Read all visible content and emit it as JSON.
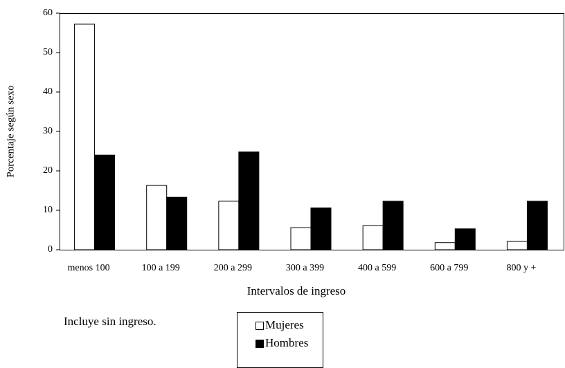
{
  "chart_data": {
    "type": "bar",
    "y_label": "Porcentaje según sexo",
    "x_label": "Intervalos de ingreso",
    "note": "Incluye sin ingreso.",
    "categories": [
      "menos 100",
      "100 a 199",
      "200 a 299",
      "300 a 399",
      "400 a 599",
      "600 a 799",
      "800 y +"
    ],
    "series": [
      {
        "name": "Mujeres",
        "color": "#ffffff",
        "values": [
          57.2,
          16.3,
          12.3,
          5.6,
          6.1,
          1.8,
          2.1
        ]
      },
      {
        "name": "Hombres",
        "color": "#000000",
        "values": [
          24.0,
          13.3,
          24.8,
          10.6,
          12.3,
          5.3,
          12.3
        ]
      }
    ],
    "ylim": [
      0,
      60
    ],
    "yticks": [
      0,
      10,
      20,
      30,
      40,
      50,
      60
    ]
  }
}
